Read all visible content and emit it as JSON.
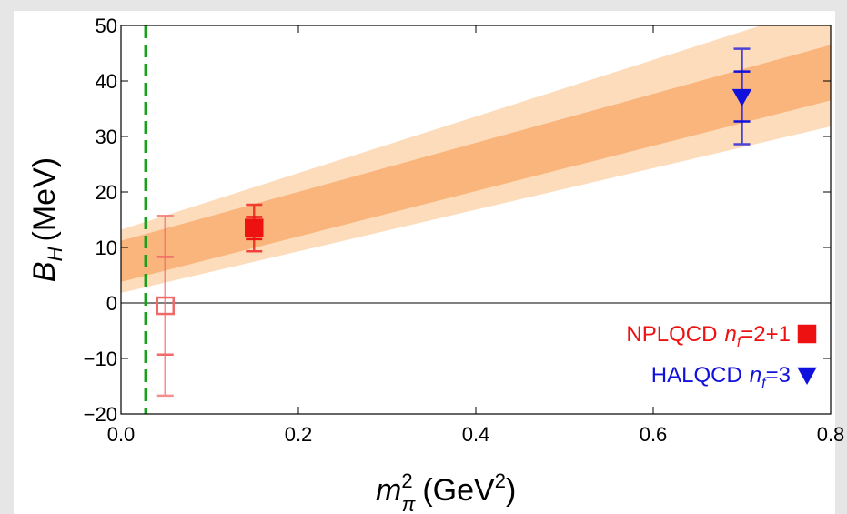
{
  "chart_data": {
    "type": "scatter",
    "y_label": {
      "main": "B",
      "sub": "H",
      "unit": "(MeV)"
    },
    "x_label": {
      "main": "m",
      "sup": "2",
      "sub": "π",
      "unit_open": "(GeV",
      "unit_sup": "2",
      "unit_close": ")"
    },
    "xlim": [
      0,
      0.8
    ],
    "ylim": [
      -20,
      50
    ],
    "xticks": [
      {
        "value": 0,
        "label": "0.0"
      },
      0.2,
      0.4,
      0.6,
      0.8
    ],
    "yticks": [
      {
        "value": -20,
        "label": "−20"
      },
      {
        "value": -10,
        "label": "−10"
      },
      0,
      10,
      20,
      30,
      40,
      50
    ],
    "zero_line": true,
    "vline": {
      "x": 0.028,
      "color": "#1aa01a"
    },
    "bands": [
      {
        "color": "#fddcbc",
        "x": [
          0,
          0.8
        ],
        "lower": [
          1.8,
          31.8
        ],
        "upper": [
          13.2,
          54
        ]
      },
      {
        "color": "#f9b57c",
        "x": [
          0,
          0.8
        ],
        "lower": [
          3.8,
          36.5
        ],
        "upper": [
          11.2,
          46.5
        ]
      }
    ],
    "legend": "lower right",
    "series": [
      {
        "name": "NPLQCD",
        "label_var": "n",
        "label_sub": "f",
        "label_value": "=2+1",
        "color": "#ee1111",
        "marker": "square",
        "x": [
          0.05,
          0.15
        ],
        "values": [
          -0.5,
          13.5
        ],
        "err_stat": [
          8.8,
          2.0
        ],
        "err_total": [
          16.2,
          4.2
        ],
        "point_colors": [
          "#f06a6a",
          "#ee1111"
        ],
        "point_filled": [
          false,
          true
        ]
      },
      {
        "name": "HALQCD",
        "label_var": "n",
        "label_sub": "f",
        "label_value": "=3",
        "color": "#1111dd",
        "marker": "triangle",
        "x": [
          0.7
        ],
        "values": [
          37.2
        ],
        "err_stat": [
          4.5
        ],
        "err_total": [
          8.6
        ],
        "point_colors": [
          "#1111dd"
        ],
        "point_filled": [
          true
        ]
      }
    ]
  }
}
